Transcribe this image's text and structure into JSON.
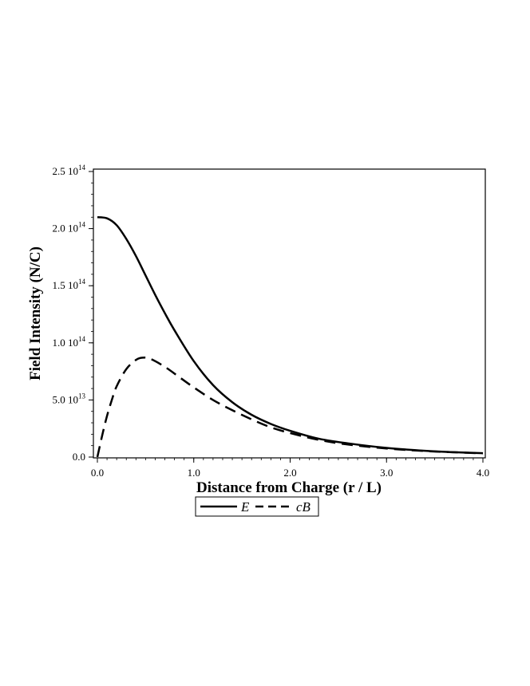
{
  "chart_data": {
    "type": "line",
    "title": "",
    "xlabel": "Distance from Charge (r / L)",
    "ylabel": "Field Intensity (N/C)",
    "xlim": [
      0,
      4
    ],
    "ylim": [
      0,
      250000000000000.0
    ],
    "x_ticks": [
      {
        "value": 0,
        "label": "0.0"
      },
      {
        "value": 1,
        "label": "1.0"
      },
      {
        "value": 2,
        "label": "2.0"
      },
      {
        "value": 3,
        "label": "3.0"
      },
      {
        "value": 4,
        "label": "4.0"
      }
    ],
    "y_ticks": [
      {
        "value": 0,
        "mantissa": "0.0",
        "exponent": ""
      },
      {
        "value": 50000000000000.0,
        "mantissa": "5.0 10",
        "exponent": "13"
      },
      {
        "value": 100000000000000.0,
        "mantissa": "1.0 10",
        "exponent": "14"
      },
      {
        "value": 150000000000000.0,
        "mantissa": "1.5 10",
        "exponent": "14"
      },
      {
        "value": 200000000000000.0,
        "mantissa": "2.0 10",
        "exponent": "14"
      },
      {
        "value": 250000000000000.0,
        "mantissa": "2.5 10",
        "exponent": "14"
      }
    ],
    "grid": false,
    "legend": "bottom-center",
    "series": [
      {
        "name": "E",
        "style": "solid",
        "color": "#000000",
        "x": [
          0,
          0.1,
          0.2,
          0.3,
          0.4,
          0.5,
          0.6,
          0.7,
          0.8,
          1.0,
          1.2,
          1.4,
          1.6,
          1.8,
          2.0,
          2.3,
          2.6,
          3.0,
          3.4,
          3.7,
          4.0
        ],
        "y": [
          210000000000000.0,
          209000000000000.0,
          203000000000000.0,
          191000000000000.0,
          176000000000000.0,
          159000000000000.0,
          142000000000000.0,
          126000000000000.0,
          111000000000000.0,
          84000000000000.0,
          63000000000000.0,
          48000000000000.0,
          37000000000000.0,
          29000000000000.0,
          23000000000000.0,
          16000000000000.0,
          12000000000000.0,
          8000000000000.0,
          5500000000000.0,
          4300000000000.0,
          3400000000000.0
        ]
      },
      {
        "name": "cB",
        "style": "dashed",
        "color": "#000000",
        "x": [
          0,
          0.05,
          0.1,
          0.15,
          0.2,
          0.3,
          0.4,
          0.47,
          0.55,
          0.7,
          0.85,
          1.0,
          1.2,
          1.4,
          1.6,
          1.8,
          2.0,
          2.3,
          2.6,
          3.0,
          3.4,
          3.7,
          4.0
        ],
        "y": [
          0,
          19000000000000.0,
          36000000000000.0,
          50000000000000.0,
          62000000000000.0,
          77000000000000.0,
          85000000000000.0,
          87000000000000.0,
          86000000000000.0,
          79000000000000.0,
          70000000000000.0,
          61000000000000.0,
          50000000000000.0,
          41000000000000.0,
          33000000000000.0,
          26000000000000.0,
          21000000000000.0,
          15000000000000.0,
          11000000000000.0,
          7500000000000.0,
          5300000000000.0,
          4200000000000.0,
          3300000000000.0
        ]
      }
    ]
  }
}
